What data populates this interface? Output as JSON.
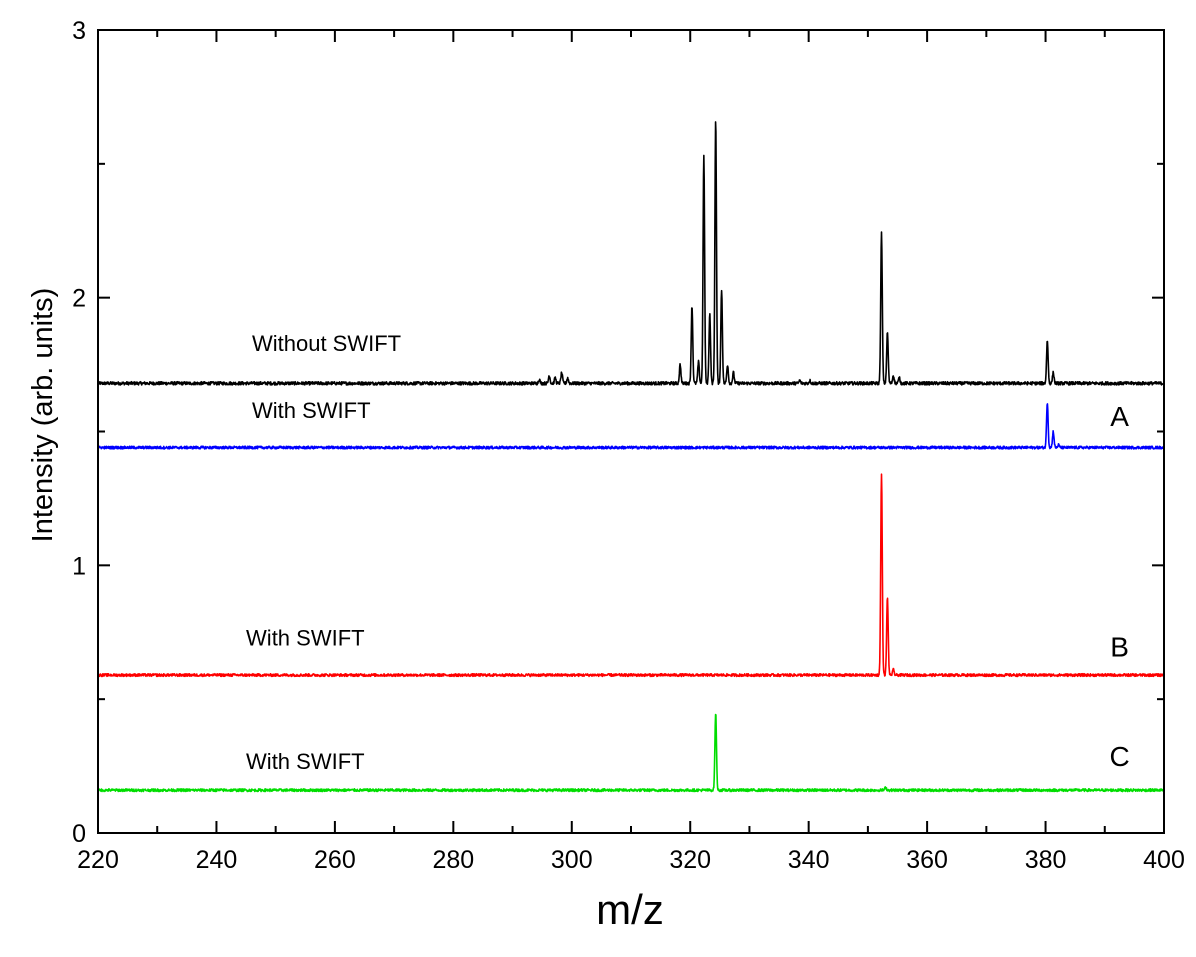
{
  "chart_data": {
    "type": "line",
    "title": "",
    "xlabel": "m/z",
    "ylabel": "Intensity (arb. units)",
    "xlim": [
      220,
      400
    ],
    "ylim": [
      0,
      3
    ],
    "x_ticks": [
      220,
      240,
      260,
      280,
      300,
      320,
      340,
      360,
      380,
      400
    ],
    "y_ticks": [
      0,
      1,
      2,
      3
    ],
    "grid": false,
    "series": [
      {
        "name": "Without SWIFT",
        "panel": "",
        "color": "#000000",
        "baseline": 1.68,
        "noise": 0.006,
        "peaks": [
          {
            "x": 294.5,
            "y": 1.695
          },
          {
            "x": 296.2,
            "y": 1.71
          },
          {
            "x": 297.2,
            "y": 1.7
          },
          {
            "x": 298.3,
            "y": 1.72
          },
          {
            "x": 299.3,
            "y": 1.7
          },
          {
            "x": 318.3,
            "y": 1.75
          },
          {
            "x": 320.3,
            "y": 1.97
          },
          {
            "x": 321.4,
            "y": 1.76
          },
          {
            "x": 322.3,
            "y": 2.53
          },
          {
            "x": 323.3,
            "y": 1.94
          },
          {
            "x": 324.3,
            "y": 2.67
          },
          {
            "x": 325.3,
            "y": 2.03
          },
          {
            "x": 326.3,
            "y": 1.75
          },
          {
            "x": 327.3,
            "y": 1.72
          },
          {
            "x": 338.5,
            "y": 1.69
          },
          {
            "x": 340.2,
            "y": 1.69
          },
          {
            "x": 352.3,
            "y": 2.24
          },
          {
            "x": 353.3,
            "y": 1.87
          },
          {
            "x": 354.3,
            "y": 1.71
          },
          {
            "x": 355.3,
            "y": 1.7
          },
          {
            "x": 380.3,
            "y": 1.84
          },
          {
            "x": 381.3,
            "y": 1.72
          }
        ]
      },
      {
        "name": "With SWIFT",
        "panel": "A",
        "color": "#0000ff",
        "baseline": 1.44,
        "noise": 0.005,
        "peaks": [
          {
            "x": 380.3,
            "y": 1.61
          },
          {
            "x": 381.3,
            "y": 1.5
          },
          {
            "x": 382.2,
            "y": 1.45
          }
        ]
      },
      {
        "name": "With SWIFT",
        "panel": "B",
        "color": "#ff0000",
        "baseline": 0.59,
        "noise": 0.005,
        "peaks": [
          {
            "x": 352.3,
            "y": 1.34
          },
          {
            "x": 353.3,
            "y": 0.88
          },
          {
            "x": 354.3,
            "y": 0.61
          }
        ]
      },
      {
        "name": "With SWIFT",
        "panel": "C",
        "color": "#00dd00",
        "baseline": 0.16,
        "noise": 0.005,
        "peaks": [
          {
            "x": 324.3,
            "y": 0.45
          },
          {
            "x": 353.0,
            "y": 0.17
          }
        ]
      }
    ],
    "annotations": [
      {
        "text": "Without SWIFT",
        "x": 246,
        "y": 1.8
      },
      {
        "text": "With SWIFT",
        "x": 246,
        "y": 1.55
      },
      {
        "text": "With SWIFT",
        "x": 245,
        "y": 0.7
      },
      {
        "text": "With SWIFT",
        "x": 245,
        "y": 0.24
      },
      {
        "text": "A",
        "x": 392.5,
        "y": 1.52
      },
      {
        "text": "B",
        "x": 392.5,
        "y": 0.66
      },
      {
        "text": "C",
        "x": 392.5,
        "y": 0.25
      }
    ]
  }
}
